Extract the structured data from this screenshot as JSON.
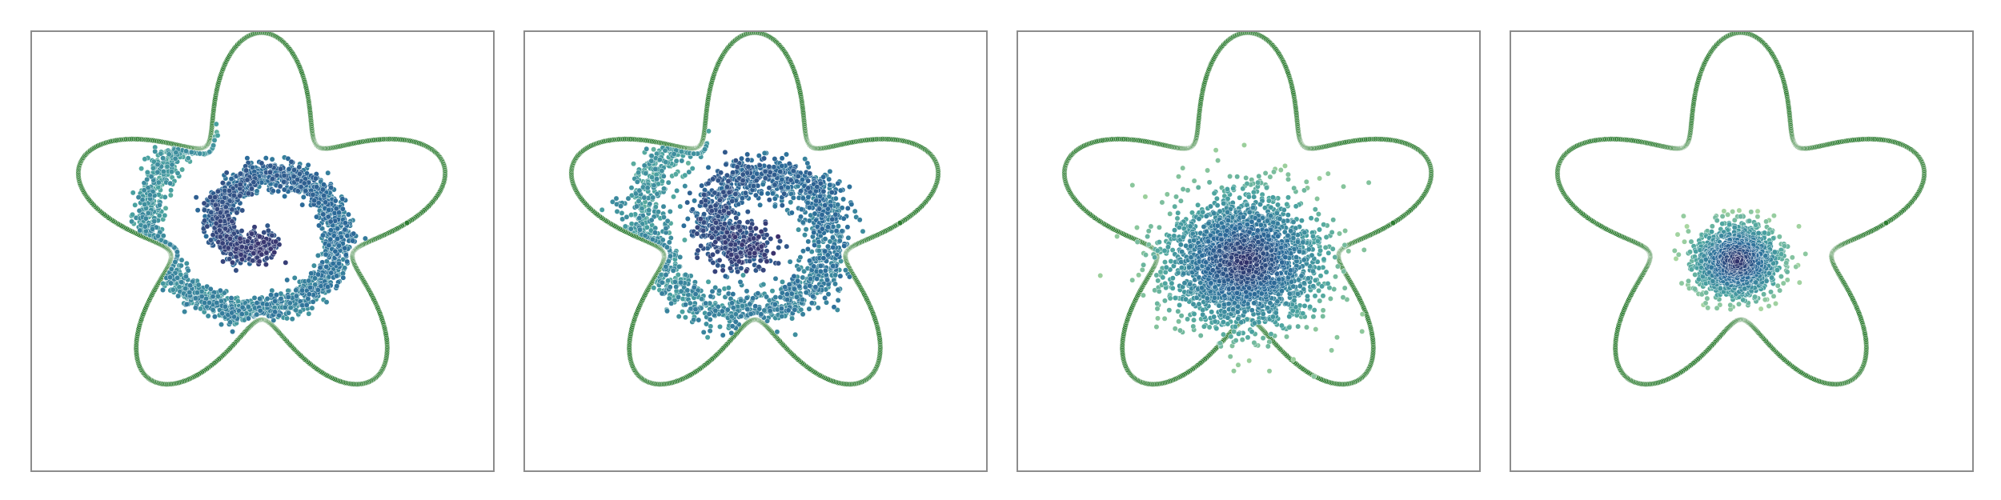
{
  "chart_data": [
    {
      "type": "scatter",
      "title": "",
      "xlabel": "",
      "ylabel": "",
      "grid": false,
      "legend": "none",
      "boundary": {
        "shape": "five-lobed star",
        "color": "#2e7d32"
      },
      "cloud": {
        "pattern": "spiral",
        "spread": 0.11,
        "points": 2600,
        "colormap": [
          "#3b2f6b",
          "#2b6c9a",
          "#4aa3a0",
          "#9bcf9b"
        ]
      }
    },
    {
      "type": "scatter",
      "title": "",
      "xlabel": "",
      "ylabel": "",
      "grid": false,
      "legend": "none",
      "boundary": {
        "shape": "five-lobed star",
        "color": "#2e7d32"
      },
      "cloud": {
        "pattern": "diffused-spiral",
        "spread": 0.16,
        "points": 2200,
        "colormap": [
          "#3b2f6b",
          "#2b6c9a",
          "#4aa3a0",
          "#9bcf9b"
        ]
      }
    },
    {
      "type": "scatter",
      "title": "",
      "xlabel": "",
      "ylabel": "",
      "grid": false,
      "legend": "none",
      "boundary": {
        "shape": "five-lobed star",
        "color": "#2e7d32"
      },
      "cloud": {
        "pattern": "gaussian",
        "spread": 0.21,
        "points": 2400,
        "colormap": [
          "#2f2a64",
          "#2b6c9a",
          "#4aa3a0",
          "#9bcf9b"
        ]
      }
    },
    {
      "type": "scatter",
      "title": "",
      "xlabel": "",
      "ylabel": "",
      "grid": false,
      "legend": "none",
      "boundary": {
        "shape": "five-lobed star",
        "color": "#2e7d32"
      },
      "cloud": {
        "pattern": "gaussian",
        "spread": 0.11,
        "points": 1500,
        "colormap": [
          "#2f2a64",
          "#2b6c9a",
          "#4aa3a0",
          "#a8d6a0"
        ]
      }
    }
  ]
}
